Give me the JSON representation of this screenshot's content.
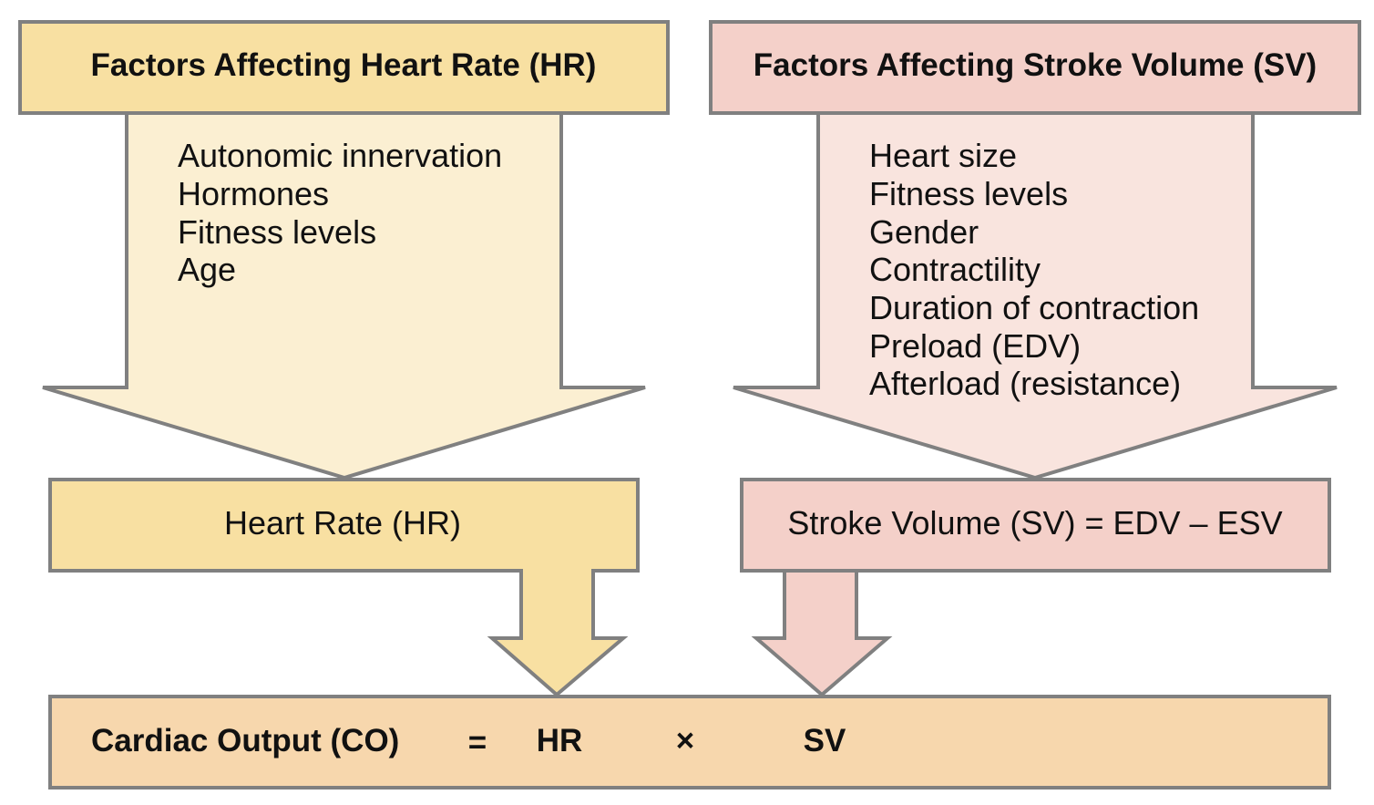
{
  "hr_factors": {
    "title": "Factors Affecting Heart Rate (HR)",
    "items": [
      "Autonomic innervation",
      "Hormones",
      "Fitness levels",
      "Age"
    ]
  },
  "sv_factors": {
    "title": "Factors Affecting Stroke Volume (SV)",
    "items": [
      "Heart size",
      "Fitness levels",
      "Gender",
      "Contractility",
      "Duration of contraction",
      "Preload (EDV)",
      "Afterload (resistance)"
    ]
  },
  "hr_box": {
    "label": "Heart Rate (HR)"
  },
  "sv_box": {
    "label": "Stroke Volume (SV) = EDV – ESV"
  },
  "co_box": {
    "label": "Cardiac Output (CO)",
    "equals": "=",
    "hr": "HR",
    "times": "×",
    "sv": "SV"
  },
  "colors": {
    "hr_header": "#F8E0A2",
    "hr_arrow": "#FBEFD2",
    "sv_header": "#F4D0C9",
    "sv_arrow": "#F9E4DE",
    "co_box": "#F7D7AD",
    "border": "#808080"
  }
}
